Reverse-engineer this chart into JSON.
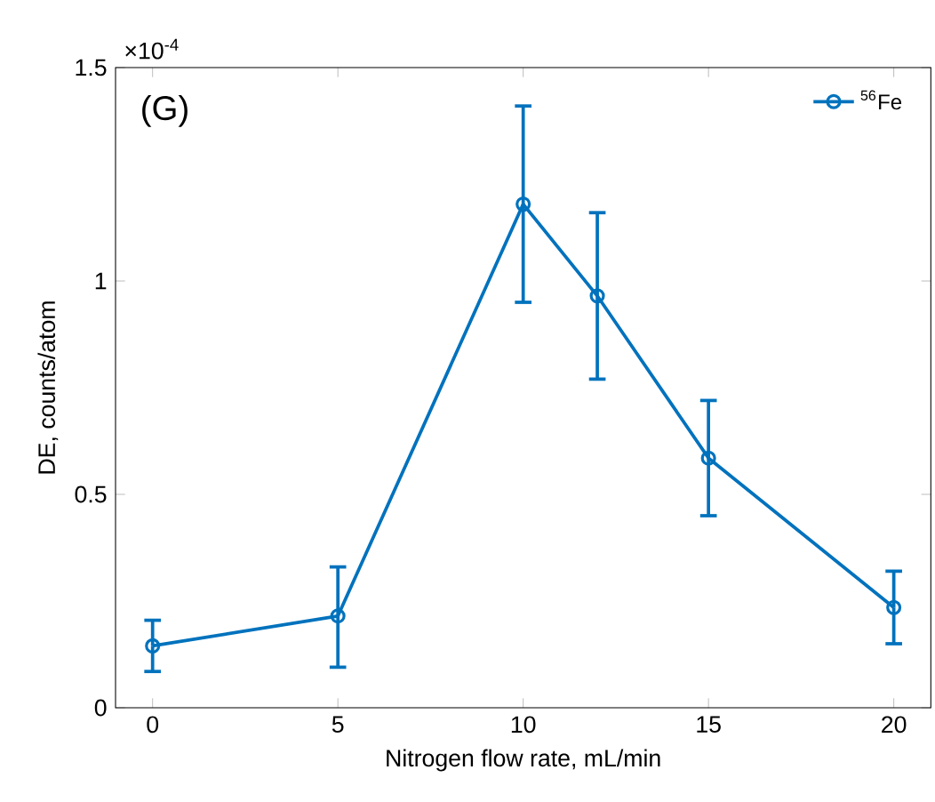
{
  "chart_data": {
    "type": "line",
    "xlabel": "Nitrogen flow rate, mL/min",
    "ylabel": "DE, counts/atom",
    "x": [
      0,
      5,
      10,
      12,
      15,
      20
    ],
    "series": [
      {
        "name": "$^{56}$Fe",
        "color": "#0072bd",
        "values": [
          0.145,
          0.215,
          1.18,
          0.965,
          0.585,
          0.235
        ],
        "errors": [
          [
            0.085,
            0.205
          ],
          [
            0.095,
            0.33
          ],
          [
            0.95,
            1.41
          ],
          [
            0.77,
            1.16
          ],
          [
            0.45,
            0.72
          ],
          [
            0.15,
            0.32
          ]
        ]
      }
    ],
    "xlim": [
      -1,
      21
    ],
    "xticks": [
      0,
      5,
      10,
      15,
      20
    ],
    "ylim": [
      0,
      1.5
    ],
    "yticks": [
      0,
      0.5,
      1,
      1.5
    ],
    "annotations": [
      "(G)",
      "×10$^{-4}$"
    ],
    "marker": "circle",
    "line_style": "solid",
    "grid": false,
    "legend": "top right"
  }
}
